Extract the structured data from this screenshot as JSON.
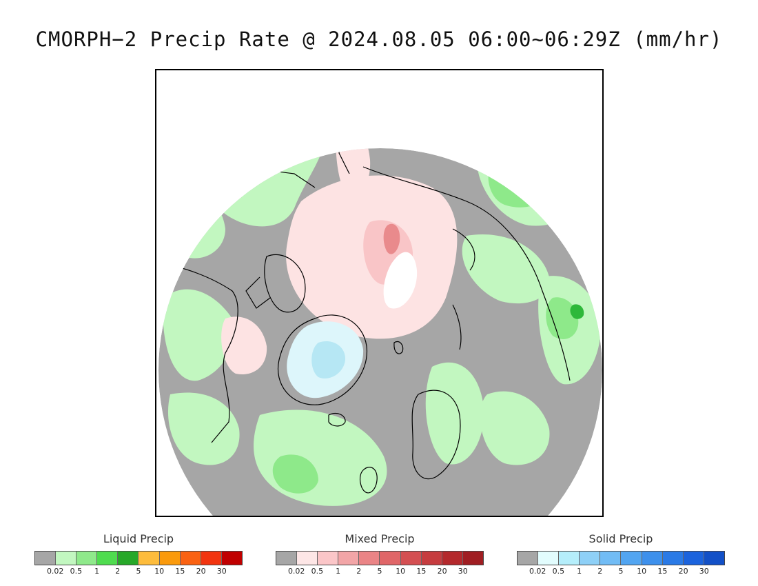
{
  "title": "CMORPH−2 Precip Rate @ 2024.08.05 06:00~06:29Z (mm/hr)",
  "map": {
    "projection": "north polar stereographic",
    "colors": {
      "no_precip": "#a6a6a6",
      "liquid_light": "#c2f7c0",
      "liquid_mid": "#8ee98a",
      "liquid_heavy": "#2eb83a",
      "mixed_light": "#fde3e3",
      "mixed_mid": "#f9c5c7",
      "mixed_heavy": "#e98a8c",
      "solid_light": "#ddf6fb",
      "solid_mid": "#b6e7f4",
      "coastline": "#000000"
    }
  },
  "legends": [
    {
      "title": "Liquid Precip",
      "colors": [
        "#a6a6a6",
        "#c2f7c0",
        "#8fe98b",
        "#4fdc4f",
        "#27a829",
        "#fdbc3c",
        "#fa9a0c",
        "#fa6212",
        "#f2340f",
        "#c00000"
      ],
      "ticks": [
        "0.02",
        "0.5",
        "1",
        "2",
        "5",
        "10",
        "15",
        "20",
        "30"
      ]
    },
    {
      "title": "Mixed Precip",
      "colors": [
        "#a6a6a6",
        "#fde6e6",
        "#fbc6c8",
        "#f2a5a7",
        "#ea8486",
        "#e06668",
        "#d44f52",
        "#c63c3f",
        "#b4292c",
        "#a01e22"
      ],
      "ticks": [
        "0.02",
        "0.5",
        "1",
        "2",
        "5",
        "10",
        "15",
        "20",
        "30"
      ]
    },
    {
      "title": "Solid Precip",
      "colors": [
        "#a6a6a6",
        "#e2fcfd",
        "#b5eefb",
        "#8ed0f7",
        "#71bcf5",
        "#52a5f1",
        "#3d90ec",
        "#2a7ae6",
        "#1b63dd",
        "#1250c7"
      ],
      "ticks": [
        "0.02",
        "0.5",
        "1",
        "2",
        "5",
        "10",
        "15",
        "20",
        "30"
      ]
    }
  ]
}
